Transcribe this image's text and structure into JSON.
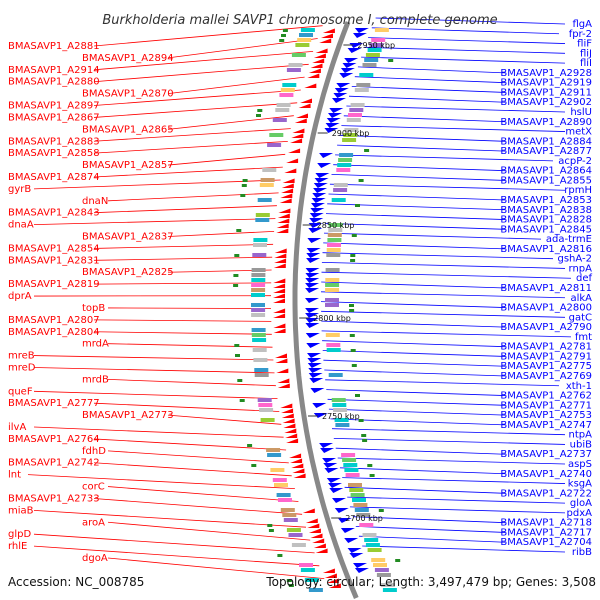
{
  "title": "Burkholderia mallei SAVP1 chromosome I, complete genome",
  "footer": {
    "accession": "Accession: NC_008785",
    "summary": "Topology: circular; Length: 3,497,479 bp; Genes: 3,508"
  },
  "colors": {
    "forward": "#ff0000",
    "reverse": "#0000ff",
    "backbone": "#888888",
    "tick": "#228b22"
  },
  "kbp_ticks": [
    "2950 kbp",
    "2900 kbp",
    "2850 kbp",
    "2800 kbp",
    "2750 kbp",
    "2700 kbp"
  ],
  "left_labels": [
    "BMASAVP1_A2881",
    "BMASAVP1_A2894",
    "BMASAVP1_A2914",
    "BMASAVP1_A2880",
    "BMASAVP1_A2870",
    "BMASAVP1_A2897",
    "BMASAVP1_A2867",
    "BMASAVP1_A2865",
    "BMASAVP1_A2883",
    "BMASAVP1_A2858",
    "BMASAVP1_A2857",
    "BMASAVP1_A2874",
    "gyrB",
    "dnaN",
    "BMASAVP1_A2843",
    "dnaA",
    "BMASAVP1_A2837",
    "BMASAVP1_A2854",
    "BMASAVP1_A2831",
    "BMASAVP1_A2825",
    "BMASAVP1_A2819",
    "dprA",
    "topB",
    "BMASAVP1_A2807",
    "BMASAVP1_A2804",
    "mrdA",
    "mreB",
    "mreD",
    "mrdB",
    "queF",
    "BMASAVP1_A2777",
    "BMASAVP1_A2773",
    "ilvA",
    "BMASAVP1_A2764",
    "fdhD",
    "BMASAVP1_A2742",
    "lnt",
    "corC",
    "BMASAVP1_A2733",
    "miaB",
    "aroA",
    "glpD",
    "rhlE",
    "dgoA"
  ],
  "right_labels": [
    "flgA",
    "fpr-2",
    "fliF",
    "fliJ",
    "fliI",
    "BMASAVP1_A2928",
    "BMASAVP1_A2919",
    "BMASAVP1_A2911",
    "BMASAVP1_A2902",
    "hslU",
    "BMASAVP1_A2890",
    "metX",
    "BMASAVP1_A2884",
    "BMASAVP1_A2877",
    "acpP-2",
    "BMASAVP1_A2864",
    "BMASAVP1_A2855",
    "rpmH",
    "BMASAVP1_A2853",
    "BMASAVP1_A2838",
    "BMASAVP1_A2828",
    "BMASAVP1_A2845",
    "ada-trmE",
    "BMASAVP1_A2816",
    "gshA-2",
    "rnpA",
    "def",
    "BMASAVP1_A2811",
    "alkA",
    "BMASAVP1_A2800",
    "gatC",
    "BMASAVP1_A2790",
    "fmt",
    "BMASAVP1_A2781",
    "BMASAVP1_A2791",
    "BMASAVP1_A2775",
    "BMASAVP1_A2769",
    "xth-1",
    "BMASAVP1_A2762",
    "BMASAVP1_A2771",
    "BMASAVP1_A2753",
    "BMASAVP1_A2747",
    "ntpA",
    "ubiB",
    "BMASAVP1_A2737",
    "aspS",
    "BMASAVP1_A2740",
    "ksgA",
    "BMASAVP1_A2722",
    "gloA",
    "pdxA",
    "BMASAVP1_A2718",
    "BMASAVP1_A2717",
    "BMASAVP1_A2704",
    "ribB"
  ]
}
